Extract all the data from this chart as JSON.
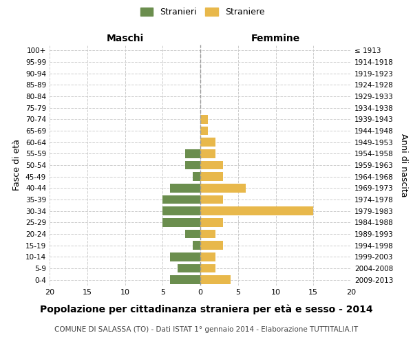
{
  "age_groups": [
    "0-4",
    "5-9",
    "10-14",
    "15-19",
    "20-24",
    "25-29",
    "30-34",
    "35-39",
    "40-44",
    "45-49",
    "50-54",
    "55-59",
    "60-64",
    "65-69",
    "70-74",
    "75-79",
    "80-84",
    "85-89",
    "90-94",
    "95-99",
    "100+"
  ],
  "birth_years": [
    "2009-2013",
    "2004-2008",
    "1999-2003",
    "1994-1998",
    "1989-1993",
    "1984-1988",
    "1979-1983",
    "1974-1978",
    "1969-1973",
    "1964-1968",
    "1959-1963",
    "1954-1958",
    "1949-1953",
    "1944-1948",
    "1939-1943",
    "1934-1938",
    "1929-1933",
    "1924-1928",
    "1919-1923",
    "1914-1918",
    "≤ 1913"
  ],
  "maschi": [
    4,
    3,
    4,
    1,
    2,
    5,
    5,
    5,
    4,
    1,
    2,
    2,
    0,
    0,
    0,
    0,
    0,
    0,
    0,
    0,
    0
  ],
  "femmine": [
    4,
    2,
    2,
    3,
    2,
    3,
    15,
    3,
    6,
    3,
    3,
    2,
    2,
    1,
    1,
    0,
    0,
    0,
    0,
    0,
    0
  ],
  "maschi_color": "#6B8E4E",
  "femmine_color": "#E8B84B",
  "grid_color": "#cccccc",
  "center_line_color": "#999999",
  "xlim": 20,
  "title": "Popolazione per cittadinanza straniera per età e sesso - 2014",
  "subtitle": "COMUNE DI SALASSA (TO) - Dati ISTAT 1° gennaio 2014 - Elaborazione TUTTITALIA.IT",
  "ylabel_left": "Fasce di età",
  "ylabel_right": "Anni di nascita",
  "xlabel_maschi": "Maschi",
  "xlabel_femmine": "Femmine",
  "legend_stranieri": "Stranieri",
  "legend_straniere": "Straniere",
  "background_color": "#ffffff",
  "fig_width": 6.0,
  "fig_height": 5.0,
  "dpi": 100
}
